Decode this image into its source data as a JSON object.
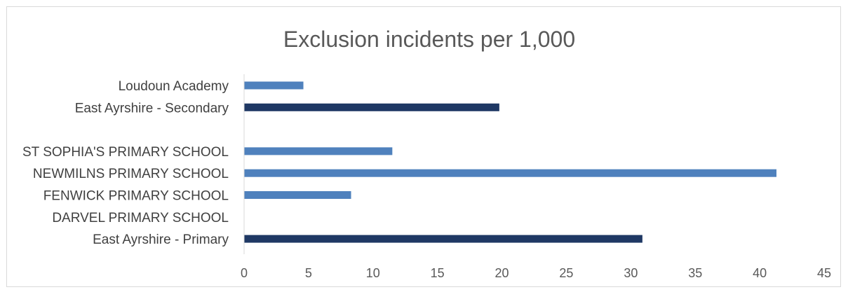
{
  "chart_data": {
    "type": "bar",
    "orientation": "horizontal",
    "title": "Exclusion incidents per 1,000",
    "categories": [
      "Loudoun Academy",
      "East Ayrshire - Secondary",
      "",
      "ST SOPHIA'S PRIMARY SCHOOL",
      "NEWMILNS PRIMARY SCHOOL",
      "FENWICK PRIMARY SCHOOL",
      "DARVEL PRIMARY SCHOOL",
      "East Ayrshire - Primary"
    ],
    "values": [
      4.6,
      19.8,
      null,
      11.5,
      41.3,
      8.3,
      0,
      30.9
    ],
    "bar_colors": [
      "#4f81bd",
      "#1f3864",
      null,
      "#4f81bd",
      "#4f81bd",
      "#4f81bd",
      "#4f81bd",
      "#1f3864"
    ],
    "xlim": [
      0,
      45
    ],
    "xticks": [
      0,
      5,
      10,
      15,
      20,
      25,
      30,
      35,
      40,
      45
    ],
    "xlabel": "",
    "ylabel": "",
    "grid": false,
    "legend": "none"
  }
}
